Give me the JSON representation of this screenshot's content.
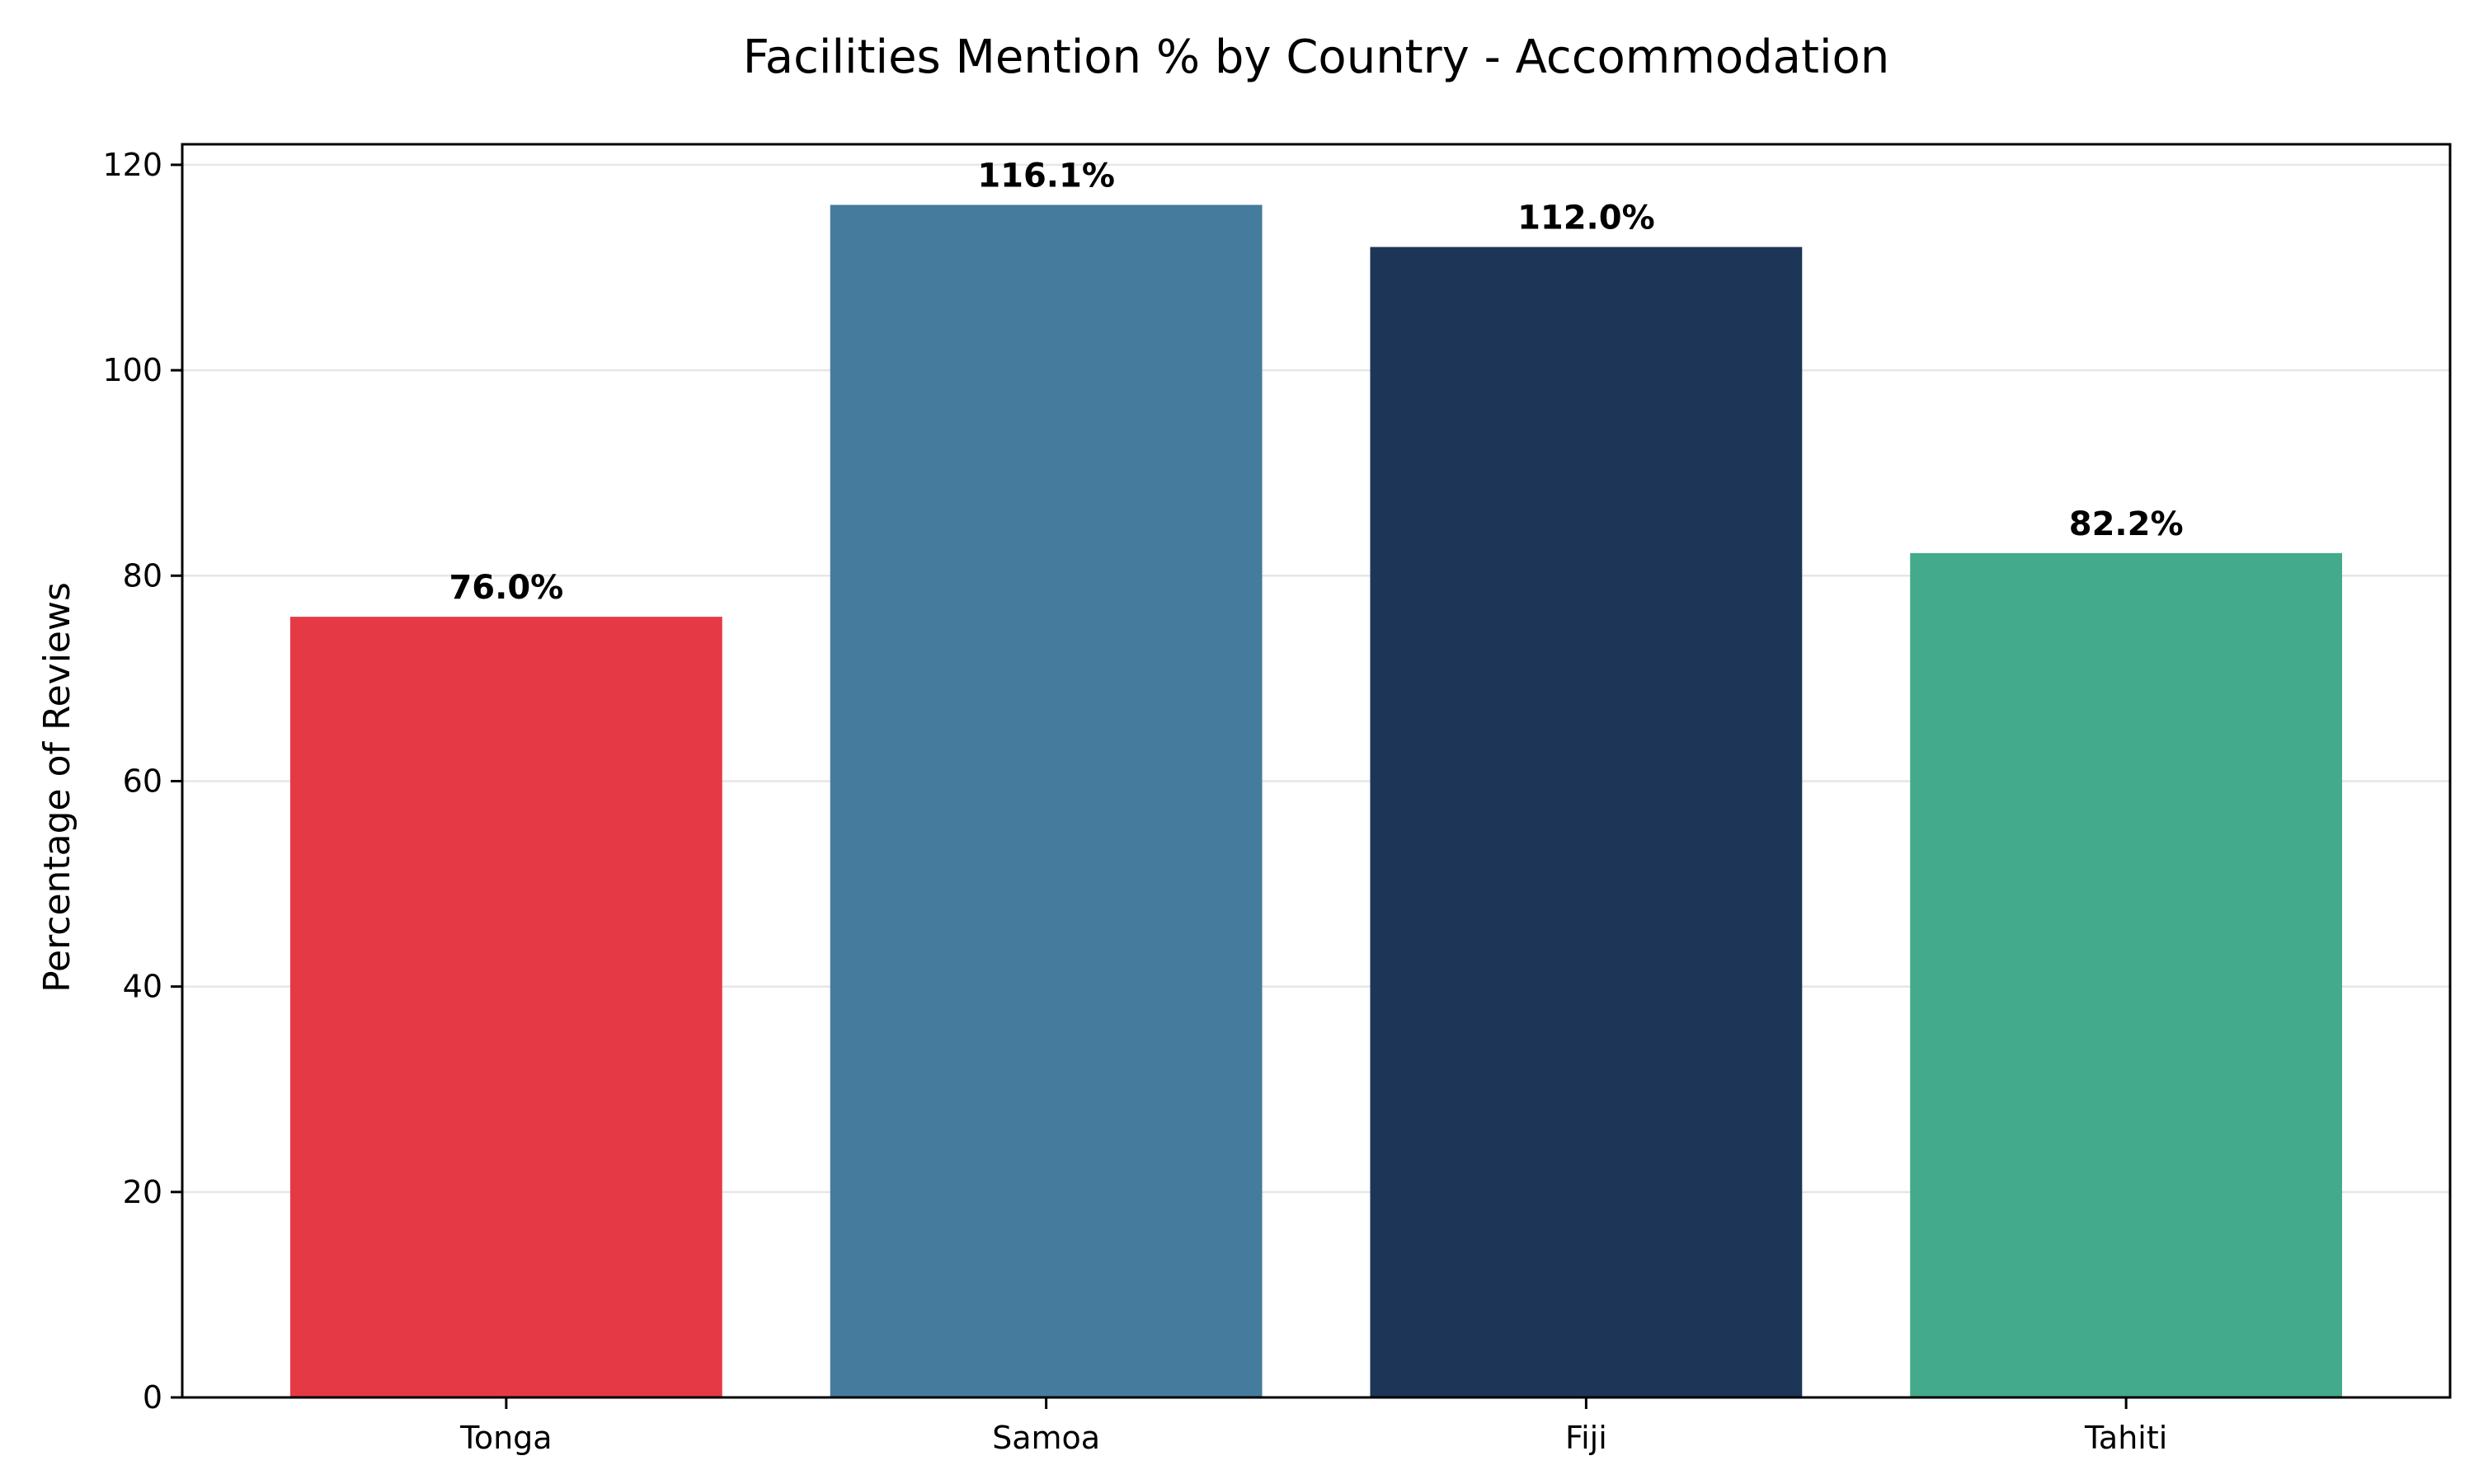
{
  "chart_data": {
    "type": "bar",
    "title": "Facilities Mention % by Country - Accommodation",
    "xlabel": "",
    "ylabel": "Percentage of Reviews",
    "categories": [
      "Tonga",
      "Samoa",
      "Fiji",
      "Tahiti"
    ],
    "values": [
      76.0,
      116.1,
      112.0,
      82.2
    ],
    "data_labels": [
      "76.0%",
      "116.1%",
      "112.0%",
      "82.2%"
    ],
    "colors": [
      "#e63946",
      "#457b9d",
      "#1d3557",
      "#43aa8b"
    ],
    "ylim": [
      0,
      122
    ],
    "yticks": [
      0,
      20,
      40,
      60,
      80,
      100,
      120
    ],
    "grid": "horizontal",
    "legend": "none"
  }
}
